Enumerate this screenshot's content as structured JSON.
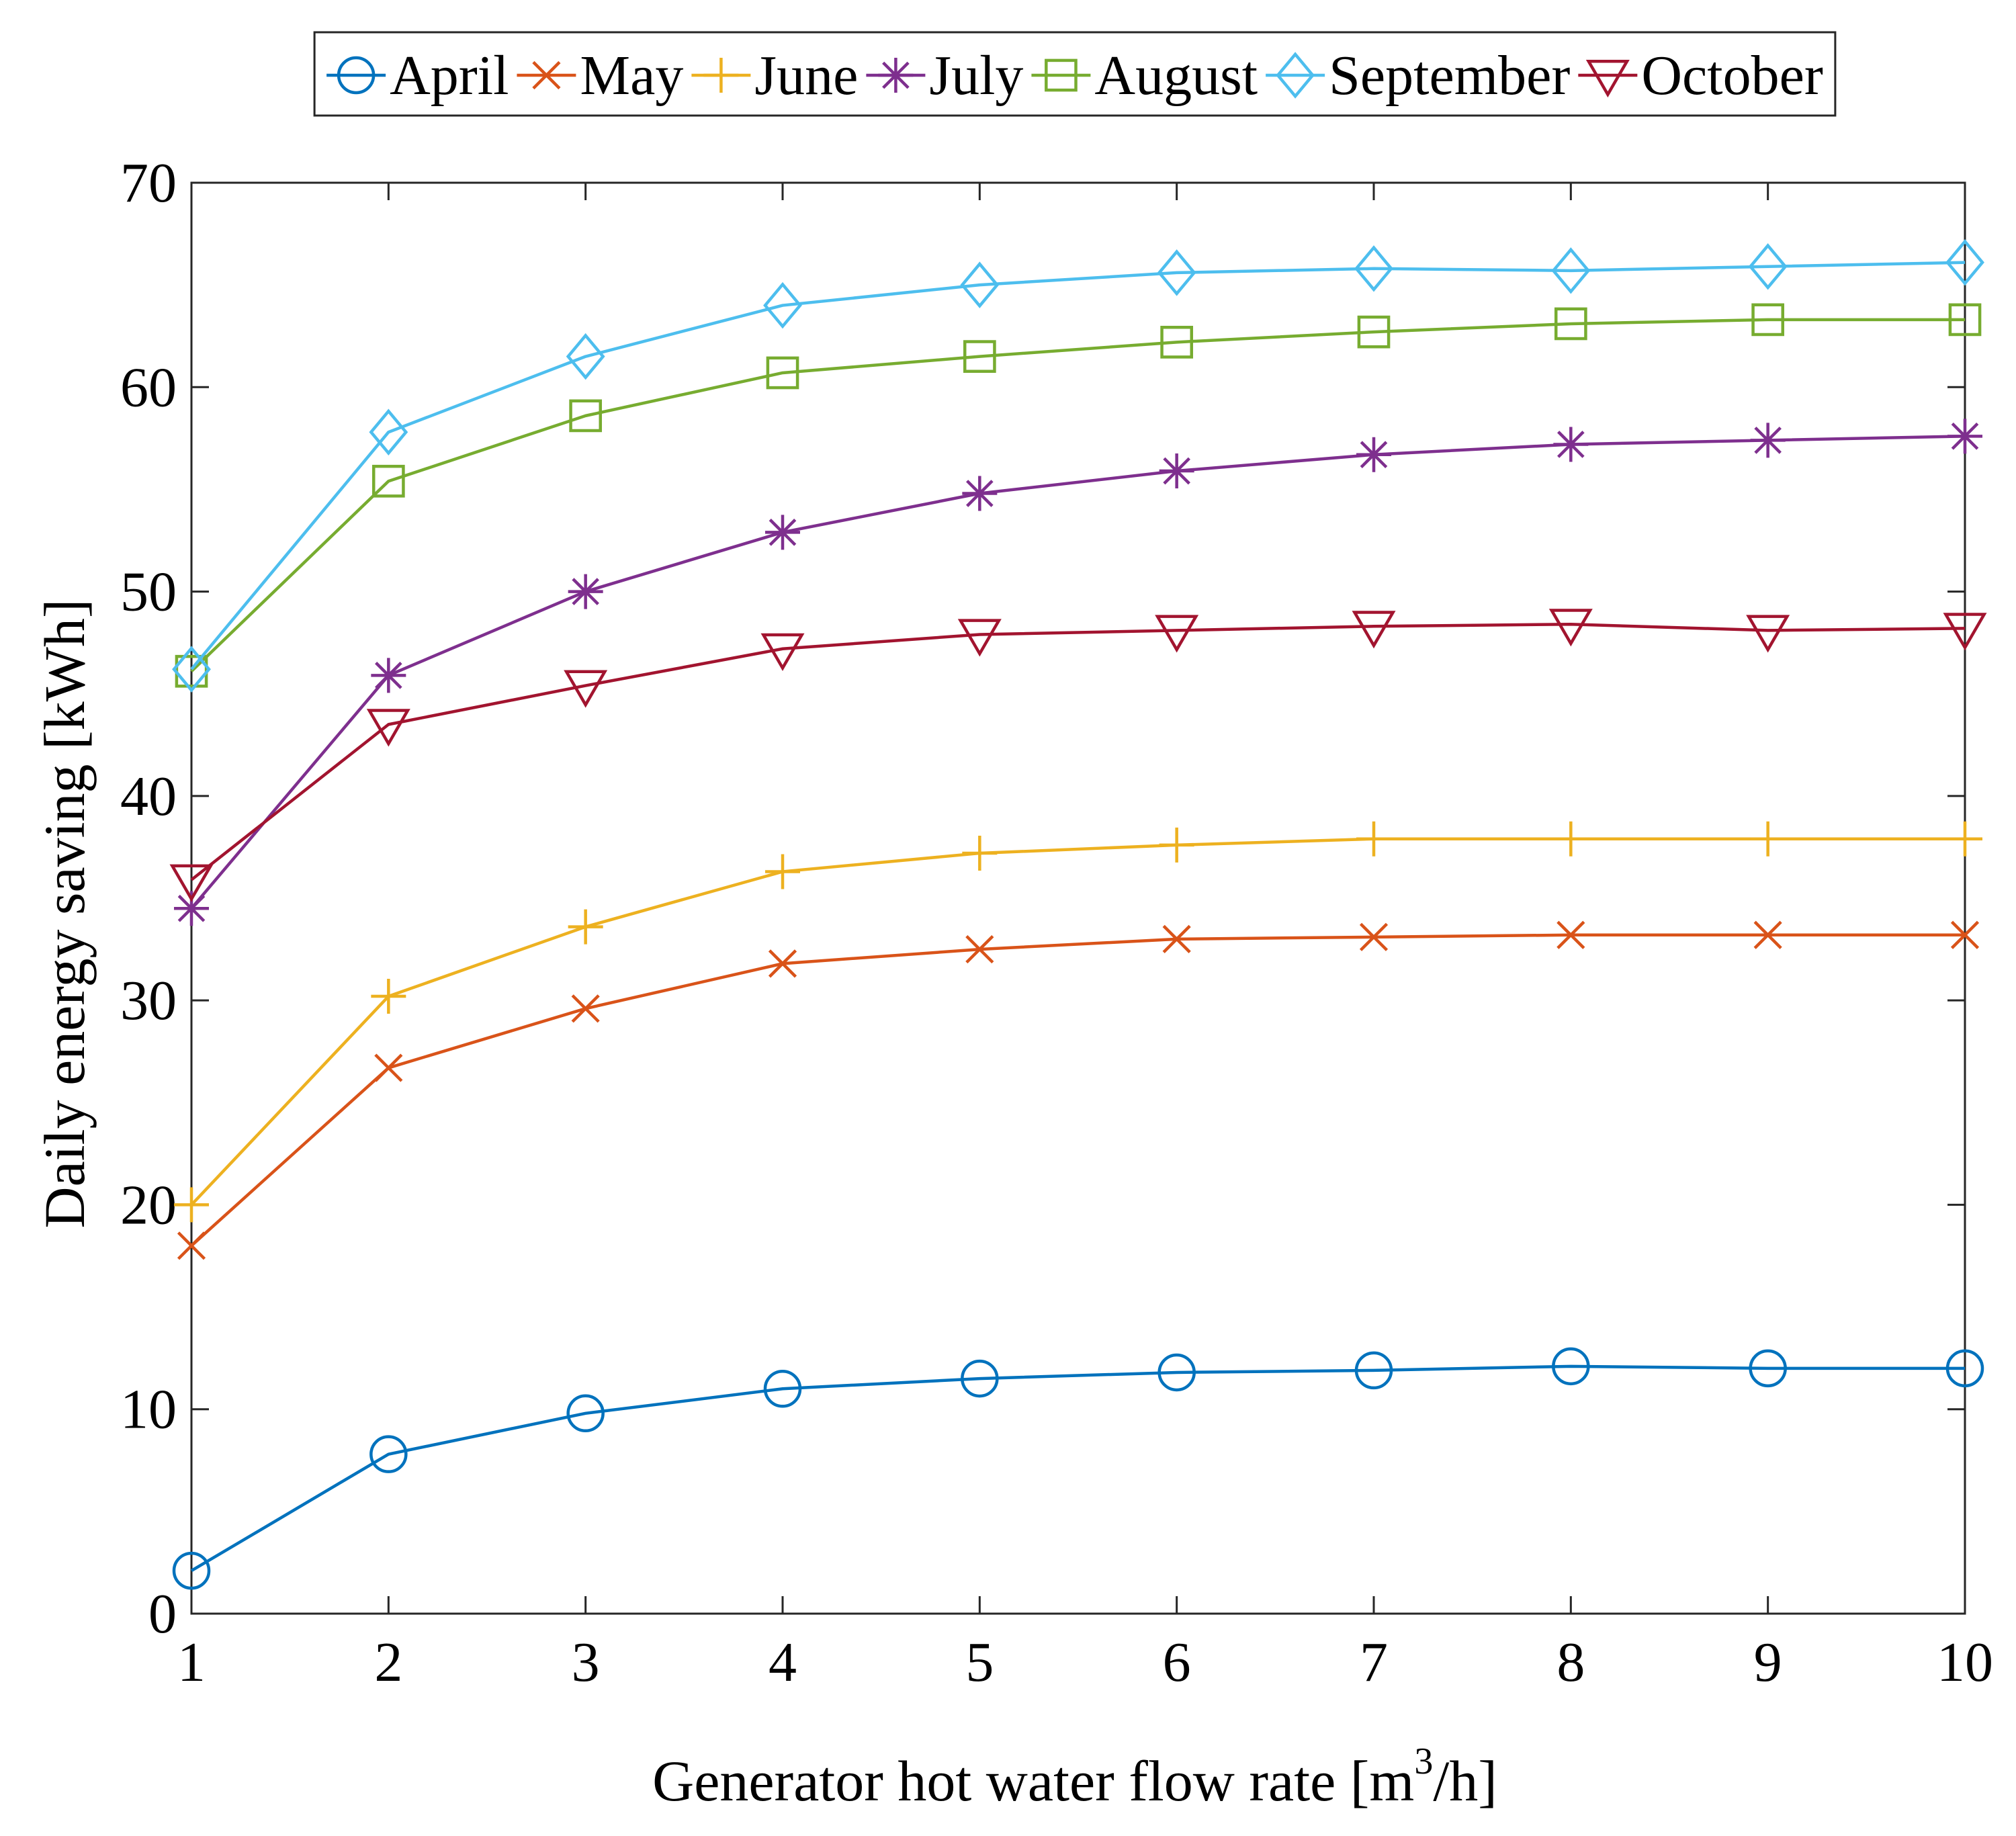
{
  "chart_data": {
    "type": "line",
    "title": "",
    "xlabel": "Generator hot water flow rate  [m",
    "xlabel_sup": "3",
    "xlabel_tail": "/h]",
    "ylabel": "Daily energy saving [kWh]",
    "xlim": [
      1,
      10
    ],
    "ylim": [
      0,
      70
    ],
    "xticks": [
      1,
      2,
      3,
      4,
      5,
      6,
      7,
      8,
      9,
      10
    ],
    "yticks": [
      0,
      10,
      20,
      30,
      40,
      50,
      60,
      70
    ],
    "grid": false,
    "legend_position": "top-outside",
    "x": [
      1,
      2,
      3,
      4,
      5,
      6,
      7,
      8,
      9,
      10
    ],
    "series": [
      {
        "name": "April",
        "color": "#0072BD",
        "marker": "circle",
        "values": [
          2.1,
          7.8,
          9.8,
          11.0,
          11.5,
          11.8,
          11.9,
          12.1,
          12.0,
          12.0
        ]
      },
      {
        "name": "May",
        "color": "#D95319",
        "marker": "x",
        "values": [
          18.0,
          26.7,
          29.6,
          31.8,
          32.5,
          33.0,
          33.1,
          33.2,
          33.2,
          33.2
        ]
      },
      {
        "name": "June",
        "color": "#EDB120",
        "marker": "plus",
        "values": [
          20.0,
          30.2,
          33.6,
          36.3,
          37.2,
          37.6,
          37.9,
          37.9,
          37.9,
          37.9
        ]
      },
      {
        "name": "July",
        "color": "#7E2F8E",
        "marker": "asterisk",
        "values": [
          34.5,
          45.9,
          50.0,
          52.9,
          54.8,
          55.9,
          56.7,
          57.2,
          57.4,
          57.6
        ]
      },
      {
        "name": "August",
        "color": "#77AC30",
        "marker": "square",
        "values": [
          46.1,
          55.4,
          58.6,
          60.7,
          61.5,
          62.2,
          62.7,
          63.1,
          63.3,
          63.3
        ]
      },
      {
        "name": "September",
        "color": "#4DBEEE",
        "marker": "diamond",
        "values": [
          46.2,
          57.8,
          61.5,
          64.0,
          65.0,
          65.6,
          65.8,
          65.7,
          65.9,
          66.1
        ]
      },
      {
        "name": "October",
        "color": "#A2142F",
        "marker": "triangle-down",
        "values": [
          35.9,
          43.5,
          45.4,
          47.2,
          47.9,
          48.1,
          48.3,
          48.4,
          48.1,
          48.2
        ]
      }
    ]
  }
}
